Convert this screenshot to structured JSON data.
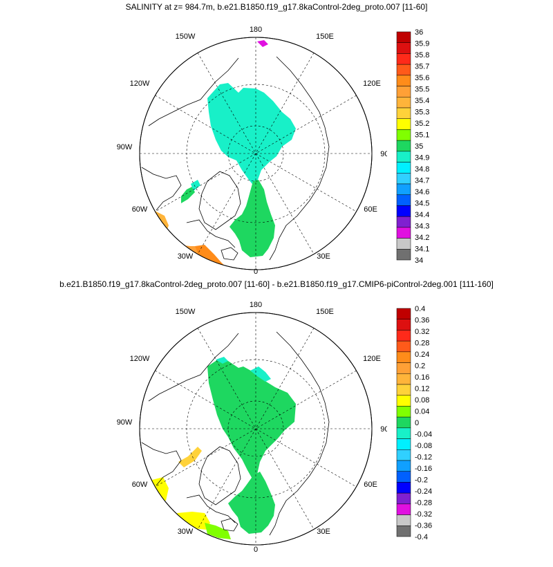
{
  "panel_top": {
    "title": "SALINITY at z= 984.7m, b.e21.B1850.f19_g17.8kaControl-2deg_proto.007 [11-60]",
    "colorbar": {
      "labels": [
        "36",
        "35.9",
        "35.8",
        "35.7",
        "35.6",
        "35.5",
        "35.4",
        "35.3",
        "35.2",
        "35.1",
        "35",
        "34.9",
        "34.8",
        "34.7",
        "34.6",
        "34.5",
        "34.4",
        "34.3",
        "34.2",
        "34.1",
        "34"
      ],
      "colors": [
        "#c00000",
        "#dd1010",
        "#ff2a1a",
        "#ff5a1a",
        "#ff8c1a",
        "#ffa036",
        "#ffb43a",
        "#ffd23a",
        "#ffff00",
        "#80ff00",
        "#1ed760",
        "#18f0c8",
        "#00f0ff",
        "#30d0ff",
        "#10a0ff",
        "#0060ff",
        "#0000ff",
        "#8020d0",
        "#e010e0",
        "#c8c8c8",
        "#707070"
      ]
    }
  },
  "panel_bottom": {
    "title": "b.e21.B1850.f19_g17.8kaControl-2deg_proto.007 [11-60] - b.e21.B1850.f19_g17.CMIP6-piControl-2deg.001 [111-160]",
    "colorbar": {
      "labels": [
        "0.4",
        "0.36",
        "0.32",
        "0.28",
        "0.24",
        "0.2",
        "0.16",
        "0.12",
        "0.08",
        "0.04",
        "0",
        "-0.04",
        "-0.08",
        "-0.12",
        "-0.16",
        "-0.2",
        "-0.24",
        "-0.28",
        "-0.32",
        "-0.36",
        "-0.4"
      ],
      "colors": [
        "#c00000",
        "#dd1010",
        "#ff2a1a",
        "#ff5a1a",
        "#ff8c1a",
        "#ffa036",
        "#ffb43a",
        "#ffd23a",
        "#ffff00",
        "#80ff00",
        "#1ed760",
        "#18f0c8",
        "#00f0ff",
        "#30d0ff",
        "#10a0ff",
        "#0060ff",
        "#0000ff",
        "#8020d0",
        "#e010e0",
        "#c8c8c8",
        "#707070"
      ]
    }
  },
  "longitude_labels": {
    "lon_180": "180",
    "lon_150e": "150E",
    "lon_120e": "120E",
    "lon_90e": "90E",
    "lon_60e": "60E",
    "lon_30e": "30E",
    "lon_0": "0",
    "lon_30w": "30W",
    "lon_60w": "60W",
    "lon_90w": "90W",
    "lon_120w": "120W",
    "lon_150w": "150W"
  }
}
